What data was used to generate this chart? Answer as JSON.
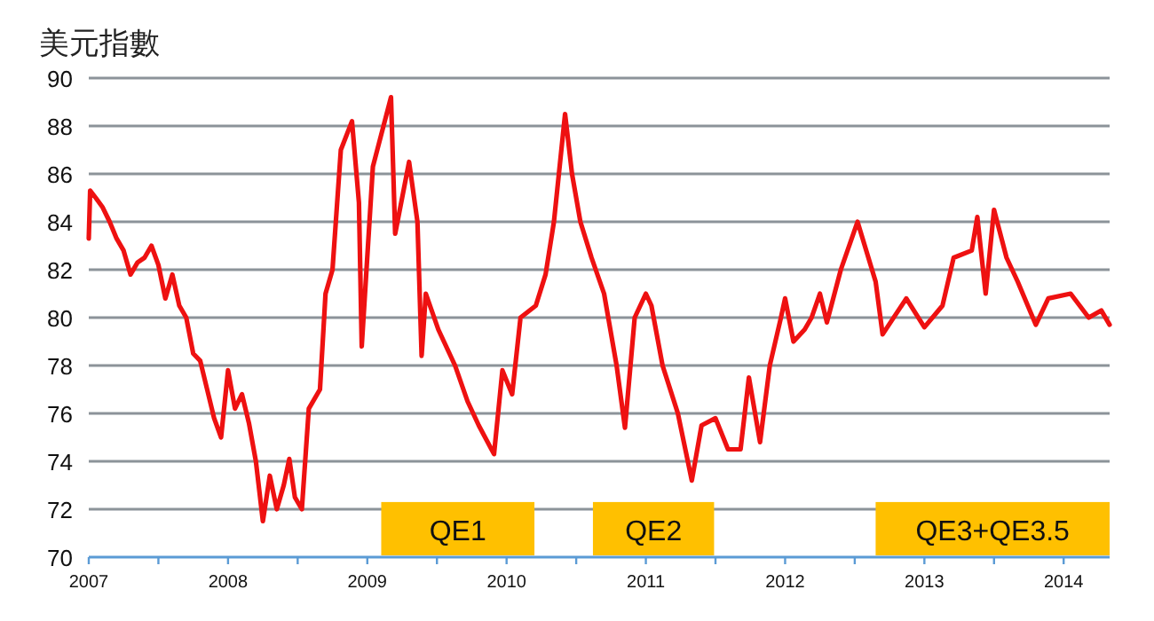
{
  "chart_data": {
    "type": "line",
    "title": "美元指數",
    "x": [
      2007.0,
      2007.01,
      2007.05,
      2007.1,
      2007.15,
      2007.2,
      2007.25,
      2007.3,
      2007.35,
      2007.4,
      2007.45,
      2007.5,
      2007.55,
      2007.6,
      2007.65,
      2007.7,
      2007.75,
      2007.8,
      2007.85,
      2007.9,
      2007.95,
      2008.0,
      2008.05,
      2008.1,
      2008.15,
      2008.2,
      2008.25,
      2008.3,
      2008.35,
      2008.4,
      2008.44,
      2008.48,
      2008.53,
      2008.58,
      2008.66,
      2008.7,
      2008.75,
      2008.81,
      2008.89,
      2008.94,
      2008.96,
      2009.04,
      2009.17,
      2009.2,
      2009.3,
      2009.36,
      2009.39,
      2009.42,
      2009.51,
      2009.63,
      2009.72,
      2009.8,
      2009.91,
      2009.97,
      2010.04,
      2010.1,
      2010.21,
      2010.28,
      2010.34,
      2010.42,
      2010.47,
      2010.53,
      2010.61,
      2010.7,
      2010.79,
      2010.85,
      2010.92,
      2011.0,
      2011.04,
      2011.12,
      2011.23,
      2011.33,
      2011.4,
      2011.5,
      2011.59,
      2011.68,
      2011.74,
      2011.82,
      2011.89,
      2011.97,
      2012.0,
      2012.06,
      2012.14,
      2012.19,
      2012.25,
      2012.3,
      2012.4,
      2012.52,
      2012.65,
      2012.7,
      2012.87,
      2013.0,
      2013.13,
      2013.21,
      2013.34,
      2013.38,
      2013.44,
      2013.5,
      2013.59,
      2013.67,
      2013.8,
      2013.89,
      2014.05,
      2014.18,
      2014.27,
      2014.33
    ],
    "series": [
      {
        "color": "#ee1111",
        "values": [
          83.3,
          85.3,
          85.0,
          84.6,
          84.0,
          83.3,
          82.8,
          81.8,
          82.3,
          82.5,
          83.0,
          82.2,
          80.8,
          81.8,
          80.5,
          80.0,
          78.5,
          78.2,
          77.0,
          75.8,
          75.0,
          77.8,
          76.2,
          76.8,
          75.6,
          74.0,
          71.5,
          73.4,
          72.0,
          73.0,
          74.1,
          72.5,
          72.0,
          76.2,
          77.0,
          81.0,
          82.0,
          87.0,
          88.2,
          84.8,
          78.8,
          86.3,
          89.2,
          83.5,
          86.5,
          84.0,
          78.4,
          81.0,
          79.5,
          78.0,
          76.5,
          75.5,
          74.3,
          77.8,
          76.8,
          80.0,
          80.5,
          81.8,
          84.0,
          88.5,
          86.0,
          84.0,
          82.5,
          81.0,
          78.0,
          75.4,
          80.0,
          81.0,
          80.5,
          78.0,
          76.0,
          73.2,
          75.5,
          75.8,
          74.5,
          74.5,
          77.5,
          74.8,
          78.0,
          80.0,
          80.8,
          79.0,
          79.5,
          80.0,
          81.0,
          79.8,
          82.0,
          84.0,
          81.5,
          79.3,
          80.8,
          79.6,
          80.5,
          82.5,
          82.8,
          84.2,
          81.0,
          84.5,
          82.5,
          81.5,
          79.7,
          80.8,
          81.0,
          80.0,
          80.3,
          79.7
        ]
      }
    ],
    "xlim": [
      2007,
      2014.33
    ],
    "xticks": [
      2007,
      {
        "value": 2007.5,
        "label": null
      },
      2008,
      {
        "value": 2008.5,
        "label": null
      },
      2009,
      {
        "value": 2009.5,
        "label": null
      },
      2010,
      {
        "value": 2010.5,
        "label": null
      },
      2011,
      {
        "value": 2011.5,
        "label": null
      },
      2012,
      {
        "value": 2012.5,
        "label": null
      },
      2013,
      {
        "value": 2013.5,
        "label": null
      },
      2014
    ],
    "ylim": [
      70,
      90
    ],
    "yticks": [
      70,
      72,
      74,
      76,
      78,
      80,
      82,
      84,
      86,
      88,
      90
    ],
    "grid": "y",
    "bands": [
      {
        "axis": "x",
        "from": 2009.1,
        "to": 2010.2,
        "label": "QE1",
        "color": "#ffc000"
      },
      {
        "axis": "x",
        "from": 2010.62,
        "to": 2011.49,
        "label": "QE2",
        "color": "#ffc000"
      },
      {
        "axis": "x",
        "from": 2012.65,
        "to": 2014.33,
        "label": "QE3+QE3.5",
        "color": "#ffc000"
      }
    ]
  }
}
